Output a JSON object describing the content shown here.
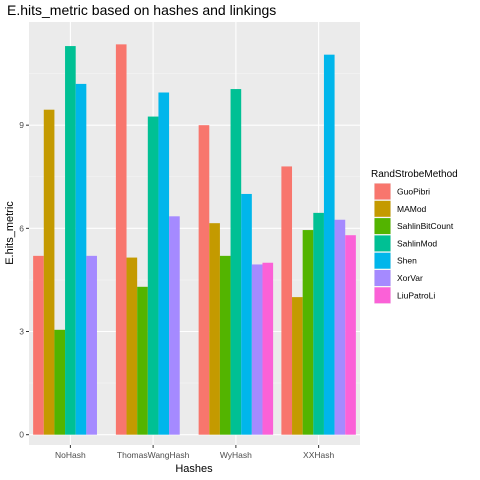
{
  "chart_data": {
    "type": "bar",
    "title": "E.hits_metric based on hashes and linkings",
    "xlabel": "Hashes",
    "ylabel": "E.hits_metric",
    "categories": [
      "NoHash",
      "ThomasWangHash",
      "WyHash",
      "XXHash"
    ],
    "ylim": [
      -0.3,
      12.0
    ],
    "yticks": [
      0,
      3,
      6,
      9
    ],
    "yticklabels": [
      "0",
      "3",
      "6",
      "9"
    ],
    "grid": true,
    "legend": {
      "title": "RandStrobeMethod",
      "position": "right"
    },
    "series": [
      {
        "name": "GuoPibri",
        "color": "#F8766D",
        "values": [
          5.2,
          11.35,
          9.0,
          7.8
        ]
      },
      {
        "name": "MAMod",
        "color": "#C49A00",
        "values": [
          9.45,
          5.15,
          6.15,
          4.0
        ]
      },
      {
        "name": "SahlinBitCount",
        "color": "#53B400",
        "values": [
          3.05,
          4.3,
          5.2,
          5.95
        ]
      },
      {
        "name": "SahlinMod",
        "color": "#00C094",
        "values": [
          11.3,
          9.25,
          10.05,
          6.45
        ]
      },
      {
        "name": "Shen",
        "color": "#00B6EB",
        "values": [
          10.2,
          9.95,
          7.0,
          11.05
        ]
      },
      {
        "name": "XorVar",
        "color": "#A58AFF",
        "values": [
          5.2,
          6.35,
          4.95,
          6.25
        ]
      },
      {
        "name": "LiuPatroLi",
        "color": "#FB61D7",
        "values": [
          0,
          0,
          5.0,
          5.8
        ]
      }
    ]
  }
}
